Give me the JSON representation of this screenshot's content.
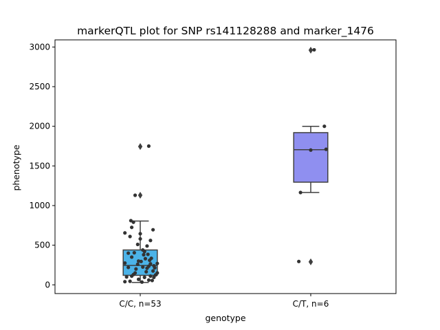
{
  "chart_data": {
    "type": "box",
    "title": "markerQTL plot for SNP rs141128288 and marker_1476",
    "xlabel": "genotype",
    "ylabel": "phenotype",
    "ylim": [
      -110,
      3090
    ],
    "yticks": [
      0,
      500,
      1000,
      1500,
      2000,
      2500,
      3000
    ],
    "grid": false,
    "legend": "none",
    "categories": [
      "C/C, n=53",
      "C/T, n=6"
    ],
    "groups": [
      {
        "label": "C/C, n=53",
        "color": "#4cb3e8",
        "box": {
          "q1": 120,
          "median": 245,
          "q3": 440,
          "whisker_low": 30,
          "whisker_high": 805
        },
        "outliers": [
          1130,
          1745
        ],
        "points": [
          [
            -0.18,
            40
          ],
          [
            -0.12,
            45
          ],
          [
            0.02,
            35
          ],
          [
            0.1,
            60
          ],
          [
            0.14,
            55
          ],
          [
            0.16,
            95
          ],
          [
            0.12,
            110
          ],
          [
            -0.02,
            70
          ],
          [
            -0.16,
            100
          ],
          [
            -0.1,
            110
          ],
          [
            -0.08,
            130
          ],
          [
            0.05,
            95
          ],
          [
            0.18,
            125
          ],
          [
            0.2,
            150
          ],
          [
            -0.06,
            150
          ],
          [
            0.07,
            165
          ],
          [
            0.15,
            175
          ],
          [
            -0.05,
            200
          ],
          [
            0.08,
            210
          ],
          [
            0.17,
            215
          ],
          [
            0.03,
            225
          ],
          [
            -0.14,
            220
          ],
          [
            0.1,
            235
          ],
          [
            0.16,
            240
          ],
          [
            -0.03,
            260
          ],
          [
            0.12,
            265
          ],
          [
            0.2,
            270
          ],
          [
            -0.18,
            275
          ],
          [
            0.01,
            295
          ],
          [
            -0.02,
            300
          ],
          [
            0.11,
            310
          ],
          [
            0.06,
            330
          ],
          [
            0.13,
            335
          ],
          [
            -0.1,
            350
          ],
          [
            0.04,
            380
          ],
          [
            0.09,
            385
          ],
          [
            -0.14,
            400
          ],
          [
            -0.07,
            405
          ],
          [
            0.05,
            420
          ],
          [
            0.03,
            440
          ],
          [
            0.08,
            490
          ],
          [
            -0.03,
            510
          ],
          [
            0.12,
            560
          ],
          [
            0.0,
            580
          ],
          [
            -0.12,
            610
          ],
          [
            -0.18,
            655
          ],
          [
            0.0,
            645
          ],
          [
            0.15,
            695
          ],
          [
            -0.1,
            725
          ],
          [
            -0.08,
            790
          ],
          [
            -0.11,
            810
          ],
          [
            -0.06,
            1130
          ],
          [
            0.1,
            1750
          ]
        ]
      },
      {
        "label": "C/T, n=6",
        "color": "#8f8ff0",
        "box": {
          "q1": 1295,
          "median": 1705,
          "q3": 1920,
          "whisker_low": 1165,
          "whisker_high": 2000
        },
        "outliers": [
          290,
          2960
        ],
        "points": [
          [
            -0.14,
            295
          ],
          [
            -0.12,
            1165
          ],
          [
            0.0,
            1700
          ],
          [
            0.18,
            1710
          ],
          [
            0.16,
            2000
          ],
          [
            0.04,
            2965
          ]
        ]
      }
    ]
  }
}
